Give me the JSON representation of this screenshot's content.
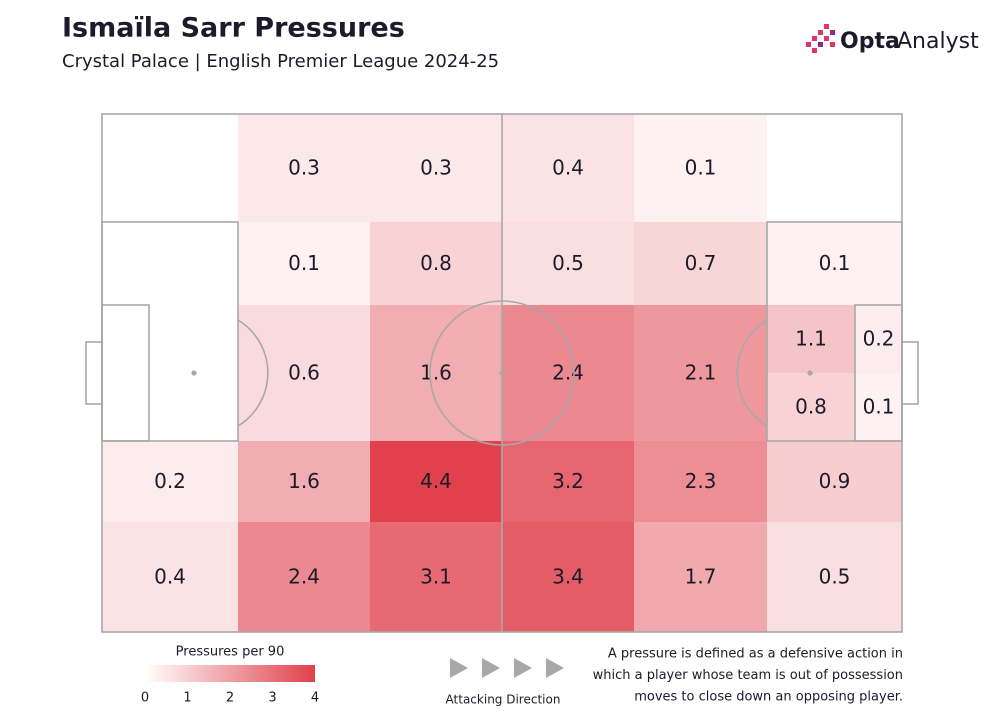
{
  "chart_data": {
    "type": "heatmap",
    "title": "Ismaïla Sarr Pressures",
    "subtitle": "Crystal Palace | English Premier League 2024-25",
    "logo": {
      "bold": "Opta",
      "regular": "Analyst"
    },
    "rows": [
      [
        null,
        0.3,
        0.3,
        0.4,
        0.1,
        null
      ],
      [
        null,
        0.1,
        0.8,
        0.5,
        0.7,
        0.1
      ],
      [
        null,
        0.6,
        1.6,
        2.4,
        2.1,
        null
      ],
      [
        0.2,
        1.6,
        4.4,
        3.2,
        2.3,
        0.9
      ],
      [
        0.4,
        2.4,
        3.1,
        3.4,
        1.7,
        0.5
      ]
    ],
    "box_zones": [
      [
        1.1,
        0.2
      ],
      [
        0.8,
        0.1
      ]
    ],
    "color": "#e0414c",
    "colorbar": {
      "label": "Pressures per 90",
      "lim": [
        0,
        4
      ],
      "ticks": [
        0,
        1,
        2,
        3,
        4
      ]
    },
    "direction_label": "Attacking Direction",
    "note": [
      "A pressure is defined as a defensive action in",
      "which a player whose team is out of possession",
      "moves to close down an opposing player."
    ]
  }
}
